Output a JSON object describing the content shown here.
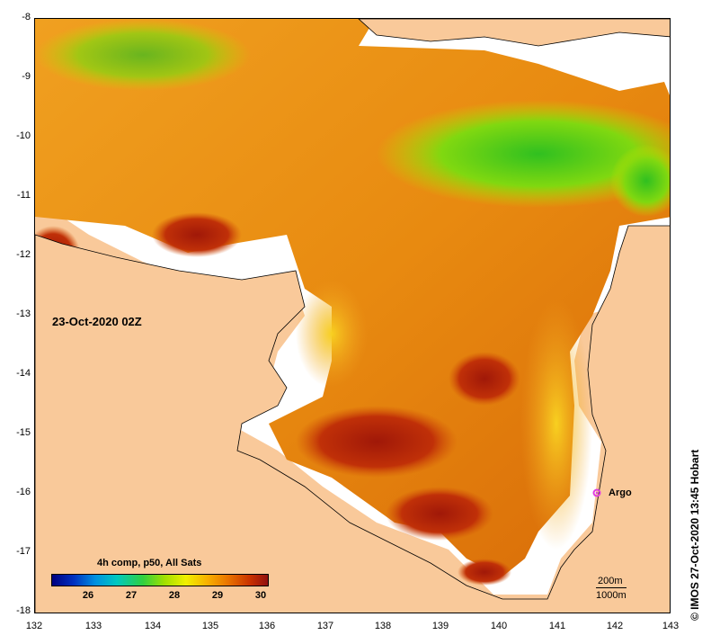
{
  "map": {
    "lon_ticks": [
      "132",
      "133",
      "134",
      "135",
      "136",
      "137",
      "138",
      "139",
      "140",
      "141",
      "142",
      "143"
    ],
    "lat_ticks": [
      "-8",
      "-9",
      "-10",
      "-11",
      "-12",
      "-13",
      "-14",
      "-15",
      "-16",
      "-17",
      "-18"
    ],
    "land_color": "#f9c99a",
    "nodata_color": "#ffffff"
  },
  "date_label": "23-Oct-2020 02Z",
  "argo": {
    "label": "Argo",
    "color": "#e040e0"
  },
  "legend": {
    "title": "4h comp, p50, All Sats",
    "labels": [
      "26",
      "27",
      "28",
      "29",
      "30"
    ]
  },
  "scale": {
    "contour_a": "200m",
    "contour_b": "1000m"
  },
  "credit": "© IMOS 27-Oct-2020 13:45 Hobart"
}
